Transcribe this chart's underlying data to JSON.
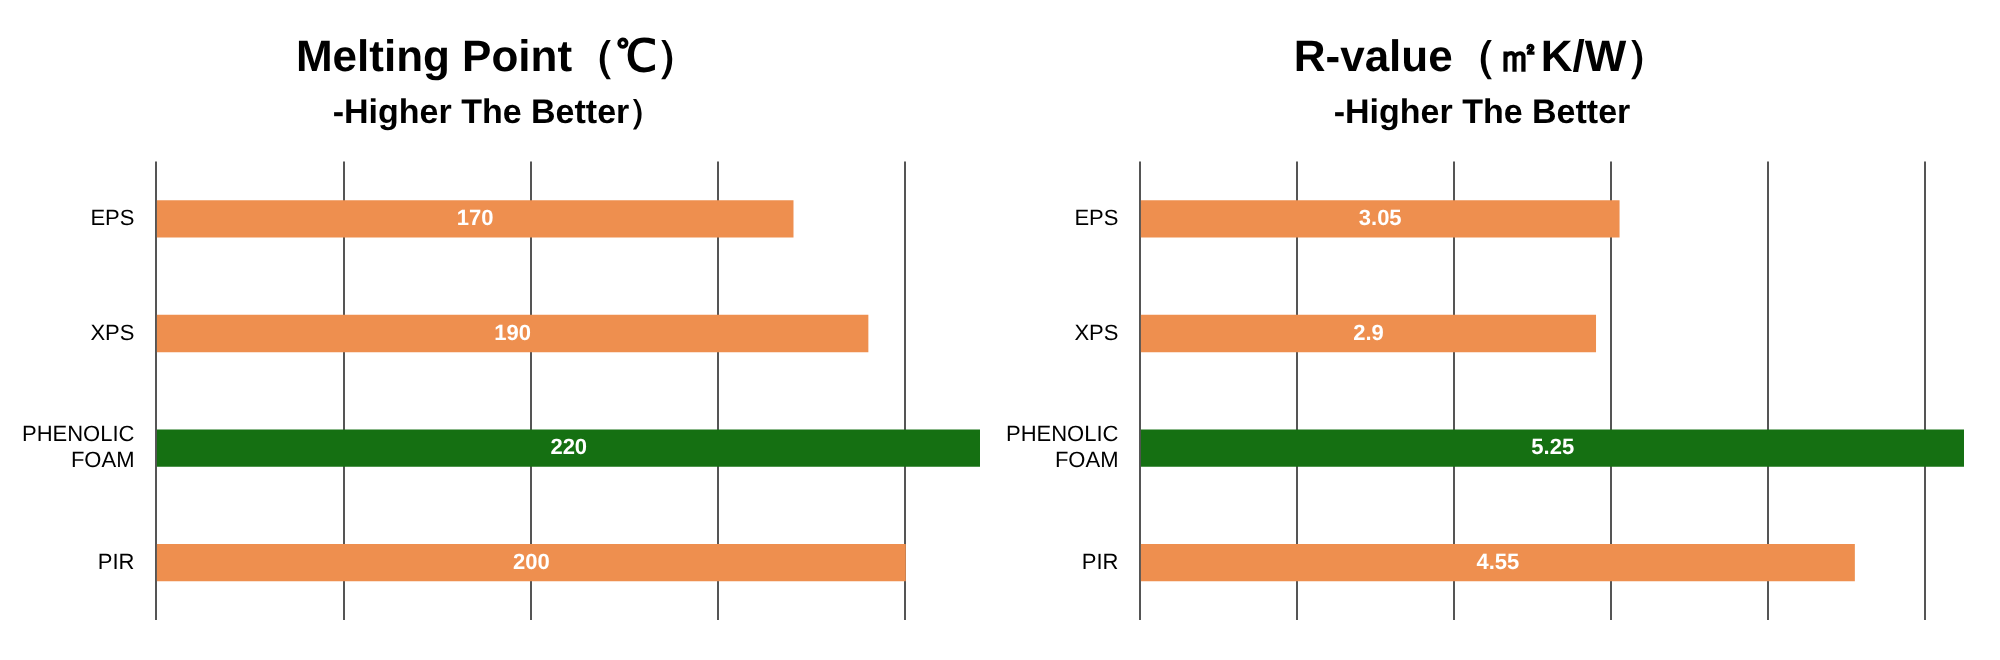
{
  "chart_data": [
    {
      "type": "bar",
      "orientation": "horizontal",
      "title": "Melting Point（℃）",
      "subtitle": "-Higher The Better）",
      "categories": [
        "EPS",
        "XPS",
        "PHENOLIC\nFOAM",
        "PIR"
      ],
      "values": [
        170,
        190,
        220,
        200
      ],
      "colors": [
        "#ee8f4f",
        "#ee8f4f",
        "#157012",
        "#ee8f4f"
      ],
      "xlim": [
        0,
        220
      ],
      "xticks": [
        {
          "value": 0,
          "label": null
        },
        {
          "value": 50,
          "label": null
        },
        {
          "value": 100,
          "label": null
        },
        {
          "value": 150,
          "label": null
        },
        {
          "value": 200,
          "label": null
        }
      ],
      "grid": "x",
      "tick_labels": "y",
      "data_labels": true
    },
    {
      "type": "bar",
      "orientation": "horizontal",
      "title": "R-value（㎡K/W）",
      "subtitle": "-Higher The Better",
      "categories": [
        "EPS",
        "XPS",
        "PHENOLIC\nFOAM",
        "PIR"
      ],
      "values": [
        3.05,
        2.9,
        5.25,
        4.55
      ],
      "colors": [
        "#ee8f4f",
        "#ee8f4f",
        "#157012",
        "#ee8f4f"
      ],
      "xlim": [
        0,
        5.25
      ],
      "xticks": [
        {
          "value": 0,
          "label": null
        },
        {
          "value": 1,
          "label": null
        },
        {
          "value": 2,
          "label": null
        },
        {
          "value": 3,
          "label": null
        },
        {
          "value": 4,
          "label": null
        },
        {
          "value": 5,
          "label": null
        }
      ],
      "grid": "x",
      "tick_labels": "y",
      "data_labels": true
    }
  ]
}
